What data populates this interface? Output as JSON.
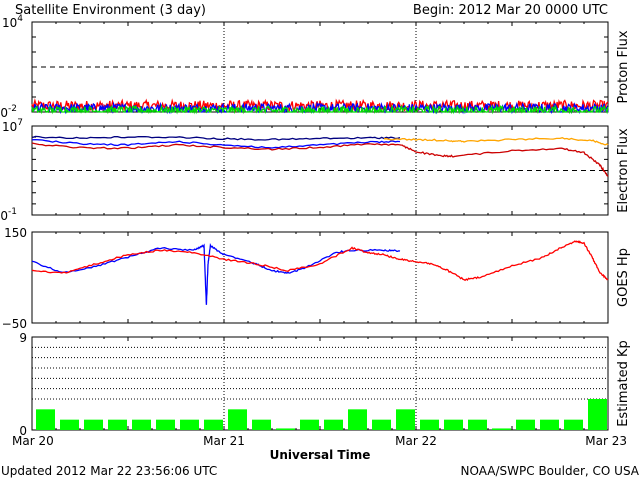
{
  "header": {
    "title": "Satellite Environment (3 day)",
    "begin": "Begin:  2012 Mar 20 0000 UTC"
  },
  "footer": {
    "updated": "Updated 2012 Mar 22 23:56:06 UTC",
    "credit": "NOAA/SWPC Boulder, CO USA"
  },
  "colors": {
    "red": "#ff0000",
    "blue": "#0000ff",
    "green": "#00dd00",
    "orange": "#ffa500",
    "darkred": "#cc0000",
    "navy": "#000080",
    "bar_green": "#00ff00"
  },
  "chart_data": [
    {
      "id": "proton",
      "type": "line",
      "ylabel": "Proton Flux",
      "scale": "log",
      "ylim": [
        0.01,
        10000
      ],
      "yticks": [
        {
          "base": "10",
          "exp": "4",
          "value": 10000
        },
        {
          "base": "10",
          "exp": "-2",
          "value": 0.01
        }
      ],
      "threshold": 10,
      "xlim": [
        0,
        72
      ],
      "series": [
        {
          "color": "red",
          "level": 0.026,
          "noise": 0.35
        },
        {
          "color": "blue",
          "level": 0.018,
          "noise": 0.3
        },
        {
          "color": "green",
          "level": 0.012,
          "noise": 0.3
        }
      ]
    },
    {
      "id": "electron",
      "type": "line",
      "ylabel": "Electron Flux",
      "scale": "log",
      "ylim": [
        0.1,
        10000000
      ],
      "yticks": [
        {
          "base": "10",
          "exp": "7",
          "value": 10000000
        },
        {
          "base": "10",
          "exp": "-1",
          "value": 0.1
        }
      ],
      "threshold": 1000,
      "xlim": [
        0,
        72
      ],
      "series": [
        {
          "color": "navy",
          "x": [
            0,
            6,
            12,
            18,
            24,
            30,
            36,
            42,
            46
          ],
          "y": [
            1000000,
            850000,
            1000000,
            1000000,
            700000,
            600000,
            750000,
            850000,
            900000
          ]
        },
        {
          "color": "blue",
          "x": [
            0,
            6,
            12,
            18,
            24,
            30,
            36,
            42,
            46
          ],
          "y": [
            600000,
            250000,
            200000,
            400000,
            200000,
            110000,
            200000,
            350000,
            400000
          ]
        },
        {
          "color": "orange",
          "x": [
            44,
            48,
            52,
            54,
            60,
            66,
            70,
            72
          ],
          "y": [
            700000,
            600000,
            500000,
            400000,
            600000,
            800000,
            500000,
            200000
          ]
        },
        {
          "color": "darkred",
          "x": [
            0,
            6,
            12,
            18,
            24,
            30,
            36,
            42,
            46,
            48,
            51,
            53,
            60,
            66,
            69,
            71,
            72
          ],
          "y": [
            250000,
            110000,
            100000,
            200000,
            120000,
            80000,
            120000,
            250000,
            200000,
            50000,
            20000,
            20000,
            60000,
            100000,
            40000,
            3000,
            300
          ]
        }
      ]
    },
    {
      "id": "goes_hp",
      "type": "line",
      "ylabel": "GOES Hp",
      "scale": "linear",
      "ylim": [
        -50,
        150
      ],
      "yticks": [
        {
          "label": "150",
          "value": 150,
          "color": "#000000"
        },
        {
          "label": "−50",
          "value": -50,
          "color": "#ff0000"
        }
      ],
      "xlim": [
        0,
        72
      ],
      "series": [
        {
          "color": "blue",
          "x": [
            0,
            4,
            8,
            12,
            16,
            20,
            21.5,
            21.8,
            22,
            22.3,
            24,
            28,
            30,
            32,
            34,
            38,
            40,
            44,
            46
          ],
          "y": [
            85,
            60,
            75,
            95,
            115,
            110,
            120,
            -10,
            80,
            120,
            100,
            80,
            65,
            60,
            70,
            105,
            110,
            110,
            108
          ]
        },
        {
          "color": "red",
          "x": [
            0,
            4,
            8,
            12,
            16,
            20,
            24,
            28,
            32,
            36,
            40,
            42,
            44,
            46,
            48,
            50,
            52,
            54,
            56,
            60,
            64,
            66,
            68,
            69,
            70,
            71,
            72
          ],
          "y": [
            65,
            60,
            80,
            100,
            110,
            105,
            90,
            80,
            65,
            80,
            115,
            105,
            100,
            90,
            85,
            80,
            65,
            45,
            50,
            75,
            95,
            115,
            130,
            125,
            95,
            60,
            45
          ]
        }
      ]
    },
    {
      "id": "kp",
      "type": "bar",
      "ylabel": "Estimated Kp",
      "ylim": [
        0,
        9
      ],
      "yticks": [
        {
          "label": "9",
          "value": 9
        },
        {
          "label": "0",
          "value": 0
        }
      ],
      "dotted_levels": [
        3,
        4,
        5,
        6,
        7,
        8,
        9
      ],
      "bar_width_hours": 3,
      "values": [
        2,
        1,
        1,
        1,
        1,
        1,
        1,
        1,
        2,
        1,
        0,
        1,
        1,
        2,
        1,
        2,
        1,
        1,
        1,
        0,
        1,
        1,
        1,
        3
      ]
    }
  ],
  "x_axis": {
    "title": "Universal Time",
    "ticks": [
      {
        "label": "Mar 20",
        "hour": 0
      },
      {
        "label": "Mar 21",
        "hour": 24
      },
      {
        "label": "Mar 22",
        "hour": 48
      },
      {
        "label": "Mar 23",
        "hour": 72
      }
    ]
  }
}
